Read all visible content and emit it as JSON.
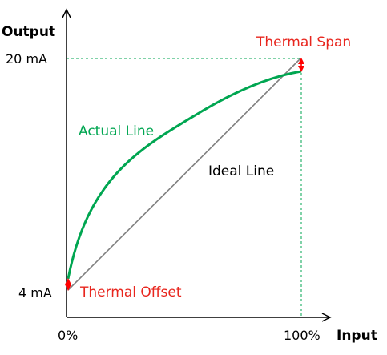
{
  "labels": {
    "y_axis": "Output",
    "x_axis": "Input",
    "y_high": "20 mA",
    "y_low": "4 mA",
    "x_low": "0%",
    "x_high": "100%",
    "actual_line": "Actual Line",
    "ideal_line": "Ideal Line",
    "thermal_span": "Thermal Span",
    "thermal_offset": "Thermal Offset"
  },
  "colors": {
    "axis": "#000000",
    "ideal_line": "#808080",
    "actual_line": "#00a651",
    "guide_line": "#00a651",
    "annotation": "#ff0000",
    "annotation_text": "#e8261e"
  }
}
